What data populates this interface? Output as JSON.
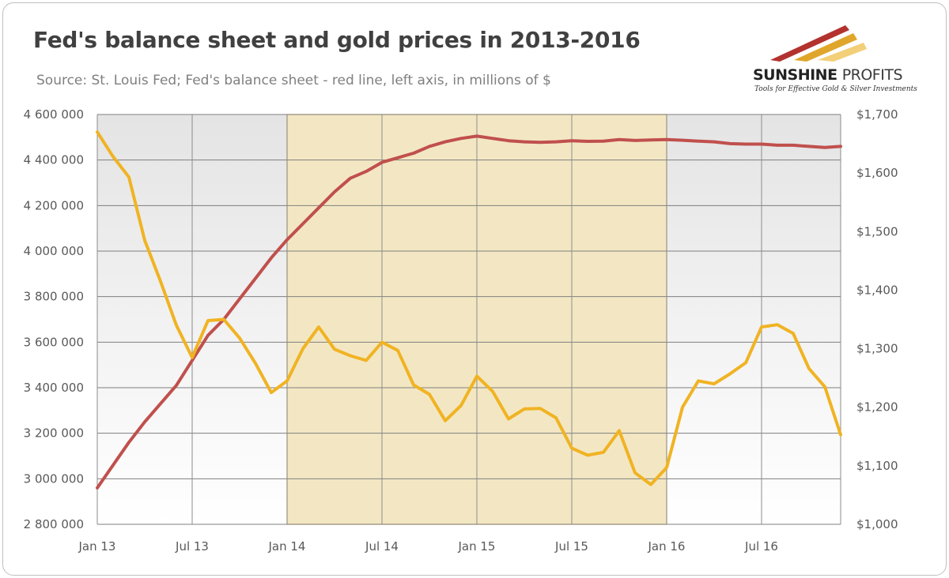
{
  "chart_data": {
    "type": "line",
    "title": "Fed's balance sheet and gold prices in 2013-2016",
    "subtitle": "Source: St. Louis Fed; Fed's balance sheet - red line, left axis, in millions of $",
    "x_tick_labels": [
      "Jan 13",
      "Jul 13",
      "Jan 14",
      "Jul 14",
      "Jan 15",
      "Jul 15",
      "Jan 16",
      "Jul 16"
    ],
    "x_range_months": [
      0,
      47
    ],
    "y_left": {
      "min": 2800000,
      "max": 4600000,
      "step": 200000,
      "tick_labels": [
        "2 800 000",
        "3 000 000",
        "3 200 000",
        "3 400 000",
        "3 600 000",
        "3 800 000",
        "4 000 000",
        "4 200 000",
        "4 400 000",
        "4 600 000"
      ]
    },
    "y_right": {
      "min": 1000,
      "max": 1700,
      "step": 100,
      "tick_labels": [
        "$1,000",
        "$1,100",
        "$1,200",
        "$1,300",
        "$1,400",
        "$1,500",
        "$1,600",
        "$1,700"
      ]
    },
    "highlight": {
      "from_month": 12,
      "to_month": 36,
      "color": "#f3e7c3"
    },
    "grid": true,
    "series": [
      {
        "axis": "left",
        "color": "#c0504d",
        "values": [
          2960000,
          3060000,
          3160000,
          3250000,
          3330000,
          3410000,
          3520000,
          3630000,
          3700000,
          3790000,
          3880000,
          3970000,
          4050000,
          4120000,
          4190000,
          4260000,
          4320000,
          4350000,
          4390000,
          4410000,
          4430000,
          4460000,
          4480000,
          4495000,
          4505000,
          4495000,
          4485000,
          4480000,
          4478000,
          4480000,
          4485000,
          4482000,
          4483000,
          4490000,
          4486000,
          4488000,
          4490000,
          4487000,
          4483000,
          4480000,
          4472000,
          4470000,
          4470000,
          4465000,
          4465000,
          4460000,
          4455000,
          4460000
        ]
      },
      {
        "axis": "right",
        "color": "#f0b323",
        "values": [
          1670,
          1628,
          1593,
          1485,
          1415,
          1340,
          1285,
          1348,
          1350,
          1318,
          1275,
          1225,
          1245,
          1300,
          1337,
          1299,
          1288,
          1280,
          1311,
          1297,
          1238,
          1222,
          1177,
          1203,
          1253,
          1227,
          1180,
          1197,
          1198,
          1182,
          1130,
          1118,
          1123,
          1160,
          1088,
          1068,
          1097,
          1200,
          1245,
          1240,
          1257,
          1276,
          1337,
          1341,
          1326,
          1266,
          1235,
          1153
        ]
      }
    ]
  },
  "logo": {
    "brand_main": "SUNSHINE",
    "brand_second": "PROFITS",
    "tagline": "Tools for Effective Gold & Silver Investments"
  }
}
